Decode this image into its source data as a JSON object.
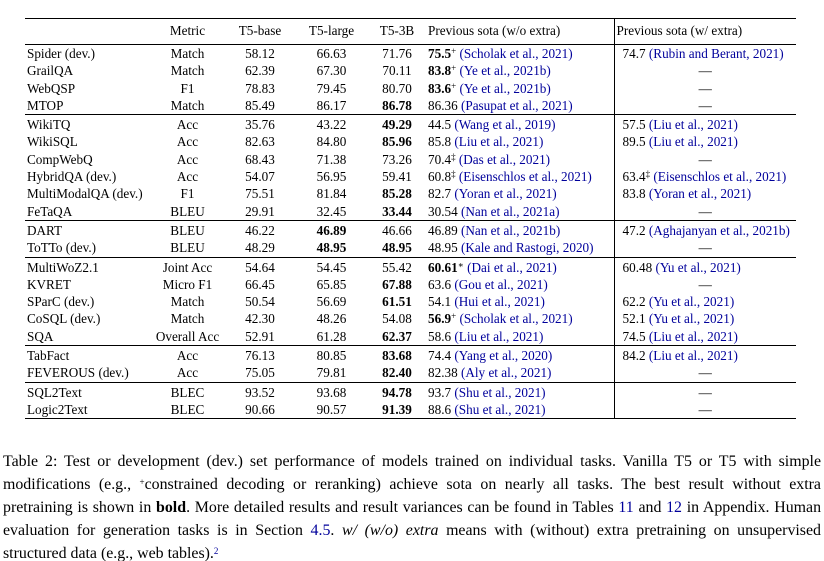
{
  "colors": {
    "citation_link": "#00009B",
    "text": "#000000",
    "rule": "#000000"
  },
  "table": {
    "dash": "—",
    "headers": {
      "task": "",
      "metric": "Metric",
      "t5_base": "T5-base",
      "t5_large": "T5-large",
      "t5_3b": "T5-3B",
      "sota_wo_extra": "Previous sota (w/o extra)",
      "sota_w_extra": "Previous sota (w/ extra)"
    },
    "groups": [
      {
        "rows": [
          {
            "task": "Spider (dev.)",
            "metric": "Match",
            "t5": [
              {
                "v": "58.12"
              },
              {
                "v": "66.63"
              },
              {
                "v": "71.76"
              }
            ],
            "sota_wo": {
              "v": "75.5",
              "bold": true,
              "sup": "+",
              "cite": "(Scholak et al., 2021)"
            },
            "sota_w": {
              "v": "74.7",
              "cite": "(Rubin and Berant, 2021)"
            }
          },
          {
            "task": "GrailQA",
            "metric": "Match",
            "t5": [
              {
                "v": "62.39"
              },
              {
                "v": "67.30"
              },
              {
                "v": "70.11"
              }
            ],
            "sota_wo": {
              "v": "83.8",
              "bold": true,
              "sup": "+",
              "cite": "(Ye et al., 2021b)"
            },
            "sota_w": null
          },
          {
            "task": "WebQSP",
            "metric": "F1",
            "t5": [
              {
                "v": "78.83"
              },
              {
                "v": "79.45"
              },
              {
                "v": "80.70"
              }
            ],
            "sota_wo": {
              "v": "83.6",
              "bold": true,
              "sup": "+",
              "cite": "(Ye et al., 2021b)"
            },
            "sota_w": null
          },
          {
            "task": "MTOP",
            "metric": "Match",
            "t5": [
              {
                "v": "85.49"
              },
              {
                "v": "86.17"
              },
              {
                "v": "86.78",
                "bold": true
              }
            ],
            "sota_wo": {
              "v": "86.36",
              "cite": "(Pasupat et al., 2021)"
            },
            "sota_w": null
          }
        ]
      },
      {
        "rows": [
          {
            "task": "WikiTQ",
            "metric": "Acc",
            "t5": [
              {
                "v": "35.76"
              },
              {
                "v": "43.22"
              },
              {
                "v": "49.29",
                "bold": true
              }
            ],
            "sota_wo": {
              "v": "44.5",
              "cite": "(Wang et al., 2019)"
            },
            "sota_w": {
              "v": "57.5",
              "cite": "(Liu et al., 2021)"
            }
          },
          {
            "task": "WikiSQL",
            "metric": "Acc",
            "t5": [
              {
                "v": "82.63"
              },
              {
                "v": "84.80"
              },
              {
                "v": "85.96",
                "bold": true
              }
            ],
            "sota_wo": {
              "v": "85.8",
              "cite": "(Liu et al., 2021)"
            },
            "sota_w": {
              "v": "89.5",
              "cite": "(Liu et al., 2021)"
            }
          },
          {
            "task": "CompWebQ",
            "metric": "Acc",
            "t5": [
              {
                "v": "68.43"
              },
              {
                "v": "71.38"
              },
              {
                "v": "73.26"
              }
            ],
            "sota_wo": {
              "v": "70.4",
              "sup": "‡",
              "cite": "(Das et al., 2021)"
            },
            "sota_w": null
          },
          {
            "task": "HybridQA (dev.)",
            "metric": "Acc",
            "t5": [
              {
                "v": "54.07"
              },
              {
                "v": "56.95"
              },
              {
                "v": "59.41"
              }
            ],
            "sota_wo": {
              "v": "60.8",
              "sup": "‡",
              "cite": "(Eisenschlos et al., 2021)"
            },
            "sota_w": {
              "v": "63.4",
              "sup": "‡",
              "cite": "(Eisenschlos et al., 2021)"
            }
          },
          {
            "task": "MultiModalQA (dev.)",
            "metric": "F1",
            "t5": [
              {
                "v": "75.51"
              },
              {
                "v": "81.84"
              },
              {
                "v": "85.28",
                "bold": true
              }
            ],
            "sota_wo": {
              "v": "82.7",
              "cite": "(Yoran et al., 2021)"
            },
            "sota_w": {
              "v": "83.8",
              "cite": "(Yoran et al., 2021)"
            }
          },
          {
            "task": "FeTaQA",
            "metric": "BLEU",
            "t5": [
              {
                "v": "29.91"
              },
              {
                "v": "32.45"
              },
              {
                "v": "33.44",
                "bold": true
              }
            ],
            "sota_wo": {
              "v": "30.54",
              "cite": "(Nan et al., 2021a)"
            },
            "sota_w": null
          }
        ]
      },
      {
        "rows": [
          {
            "task": "DART",
            "metric": "BLEU",
            "t5": [
              {
                "v": "46.22"
              },
              {
                "v": "46.89",
                "bold": true
              },
              {
                "v": "46.66"
              }
            ],
            "sota_wo": {
              "v": "46.89",
              "cite": "(Nan et al., 2021b)"
            },
            "sota_w": {
              "v": "47.2",
              "cite": "(Aghajanyan et al., 2021b)"
            }
          },
          {
            "task": "ToTTo (dev.)",
            "metric": "BLEU",
            "t5": [
              {
                "v": "48.29"
              },
              {
                "v": "48.95",
                "bold": true
              },
              {
                "v": "48.95",
                "bold": true
              }
            ],
            "sota_wo": {
              "v": "48.95",
              "cite": "(Kale and Rastogi, 2020)"
            },
            "sota_w": null
          }
        ]
      },
      {
        "rows": [
          {
            "task": "MultiWoZ2.1",
            "metric": "Joint Acc",
            "t5": [
              {
                "v": "54.64"
              },
              {
                "v": "54.45"
              },
              {
                "v": "55.42"
              }
            ],
            "sota_wo": {
              "v": "60.61",
              "bold": true,
              "sup": "∗",
              "cite": "(Dai et al., 2021)"
            },
            "sota_w": {
              "v": "60.48",
              "cite": "(Yu et al., 2021)"
            }
          },
          {
            "task": "KVRET",
            "metric": "Micro F1",
            "t5": [
              {
                "v": "66.45"
              },
              {
                "v": "65.85"
              },
              {
                "v": "67.88",
                "bold": true
              }
            ],
            "sota_wo": {
              "v": "63.6",
              "cite": "(Gou et al., 2021)"
            },
            "sota_w": null
          },
          {
            "task": "SParC (dev.)",
            "metric": "Match",
            "t5": [
              {
                "v": "50.54"
              },
              {
                "v": "56.69"
              },
              {
                "v": "61.51",
                "bold": true
              }
            ],
            "sota_wo": {
              "v": "54.1",
              "cite": "(Hui et al., 2021)"
            },
            "sota_w": {
              "v": "62.2",
              "cite": "(Yu et al., 2021)"
            }
          },
          {
            "task": "CoSQL (dev.)",
            "metric": "Match",
            "t5": [
              {
                "v": "42.30"
              },
              {
                "v": "48.26"
              },
              {
                "v": "54.08"
              }
            ],
            "sota_wo": {
              "v": "56.9",
              "bold": true,
              "sup": "+",
              "cite": "(Scholak et al., 2021)"
            },
            "sota_w": {
              "v": "52.1",
              "cite": "(Yu et al., 2021)"
            }
          },
          {
            "task": "SQA",
            "metric": "Overall Acc",
            "t5": [
              {
                "v": "52.91"
              },
              {
                "v": "61.28"
              },
              {
                "v": "62.37",
                "bold": true
              }
            ],
            "sota_wo": {
              "v": "58.6",
              "cite": "(Liu et al., 2021)"
            },
            "sota_w": {
              "v": "74.5",
              "cite": "(Liu et al., 2021)"
            }
          }
        ]
      },
      {
        "rows": [
          {
            "task": "TabFact",
            "metric": "Acc",
            "t5": [
              {
                "v": "76.13"
              },
              {
                "v": "80.85"
              },
              {
                "v": "83.68",
                "bold": true
              }
            ],
            "sota_wo": {
              "v": "74.4",
              "cite": "(Yang et al., 2020)"
            },
            "sota_w": {
              "v": "84.2",
              "cite": "(Liu et al., 2021)"
            }
          },
          {
            "task": "FEVEROUS (dev.)",
            "metric": "Acc",
            "t5": [
              {
                "v": "75.05"
              },
              {
                "v": "79.81"
              },
              {
                "v": "82.40",
                "bold": true
              }
            ],
            "sota_wo": {
              "v": "82.38",
              "cite": "(Aly et al., 2021)"
            },
            "sota_w": null
          }
        ]
      },
      {
        "rows": [
          {
            "task": "SQL2Text",
            "metric": "BLEC",
            "t5": [
              {
                "v": "93.52"
              },
              {
                "v": "93.68"
              },
              {
                "v": "94.78",
                "bold": true
              }
            ],
            "sota_wo": {
              "v": "93.7",
              "cite": "(Shu et al., 2021)"
            },
            "sota_w": null
          },
          {
            "task": "Logic2Text",
            "metric": "BLEC",
            "t5": [
              {
                "v": "90.66"
              },
              {
                "v": "90.57"
              },
              {
                "v": "91.39",
                "bold": true
              }
            ],
            "sota_wo": {
              "v": "88.6",
              "cite": "(Shu et al., 2021)"
            },
            "sota_w": null
          }
        ]
      }
    ]
  },
  "caption": {
    "segments": [
      {
        "t": "Table 2: Test or development (dev.) set performance of models trained on individual tasks. Vanilla T5 or T5 with simple modifications (e.g., "
      },
      {
        "t": "+",
        "sup": true
      },
      {
        "t": "constrained decoding or reranking) achieve sota on nearly all tasks. The best result without extra pretraining is shown in "
      },
      {
        "t": "bold",
        "bold": true
      },
      {
        "t": ". More detailed results and result variances can be found in Tables "
      },
      {
        "t": "11",
        "link": true
      },
      {
        "t": " and "
      },
      {
        "t": "12",
        "link": true
      },
      {
        "t": " in Appendix. Human evaluation for generation tasks is in Section "
      },
      {
        "t": "4.5",
        "link": true
      },
      {
        "t": ". "
      },
      {
        "t": "w/ (w/o) extra",
        "italic": true
      },
      {
        "t": " means with (without) extra pretraining on unsupervised structured data (e.g., web tables)."
      },
      {
        "t": "2",
        "sup": true,
        "link": true
      }
    ]
  }
}
